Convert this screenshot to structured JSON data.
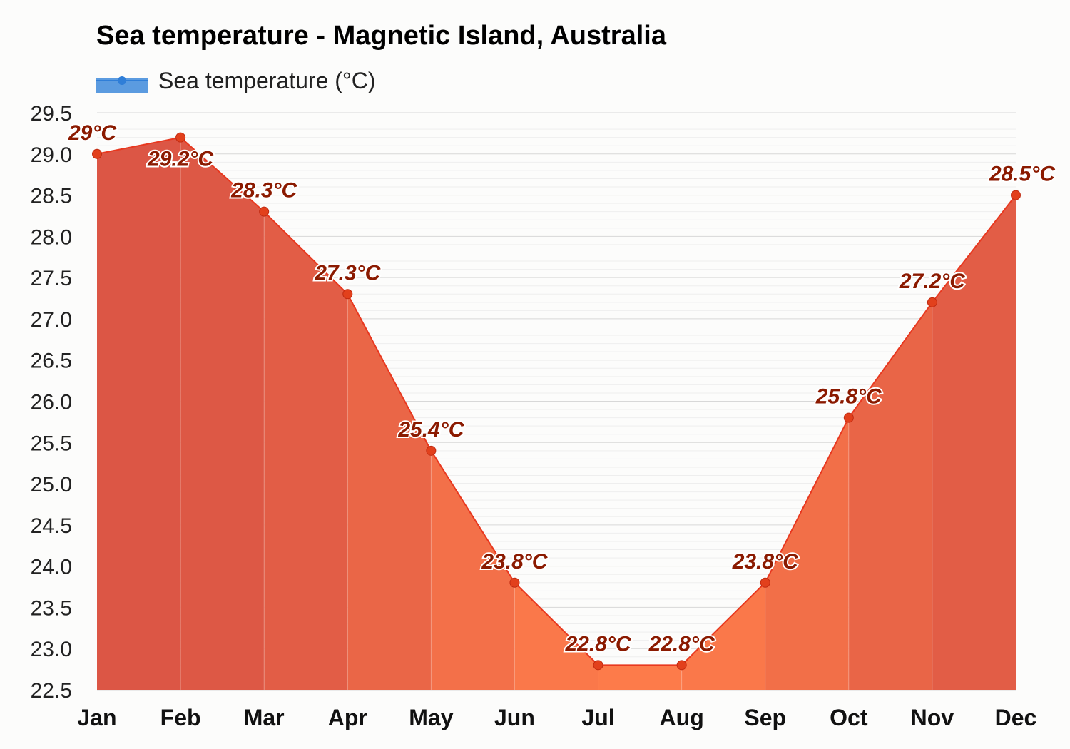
{
  "chart_data": {
    "type": "area",
    "title": "Sea temperature - Magnetic Island, Australia",
    "xlabel": "",
    "ylabel": "",
    "categories": [
      "Jan",
      "Feb",
      "Mar",
      "Apr",
      "May",
      "Jun",
      "Jul",
      "Aug",
      "Sep",
      "Oct",
      "Nov",
      "Dec"
    ],
    "series": [
      {
        "name": "Sea temperature (°C)",
        "values": [
          29,
          29.2,
          28.3,
          27.3,
          25.4,
          23.8,
          22.8,
          22.8,
          23.8,
          25.8,
          27.2,
          28.5
        ],
        "labels": [
          "29°C",
          "29.2°C",
          "28.3°C",
          "27.3°C",
          "25.4°C",
          "23.8°C",
          "22.8°C",
          "22.8°C",
          "23.8°C",
          "25.8°C",
          "27.2°C",
          "28.5°C"
        ]
      }
    ],
    "ylim": [
      22.5,
      29.5
    ],
    "yticks": [
      "22.5",
      "23.0",
      "23.5",
      "24.0",
      "24.5",
      "25.0",
      "25.5",
      "26.0",
      "26.5",
      "27.0",
      "27.5",
      "28.0",
      "28.5",
      "29.0",
      "29.5"
    ],
    "grid": true,
    "legend_position": "top-left",
    "colors": {
      "warm": "#db5545",
      "cool": "#fd7b4a",
      "line": "#e8381f",
      "marker": "#e2401c",
      "label": "#8b1a00",
      "legend": "#4a90d9"
    }
  }
}
